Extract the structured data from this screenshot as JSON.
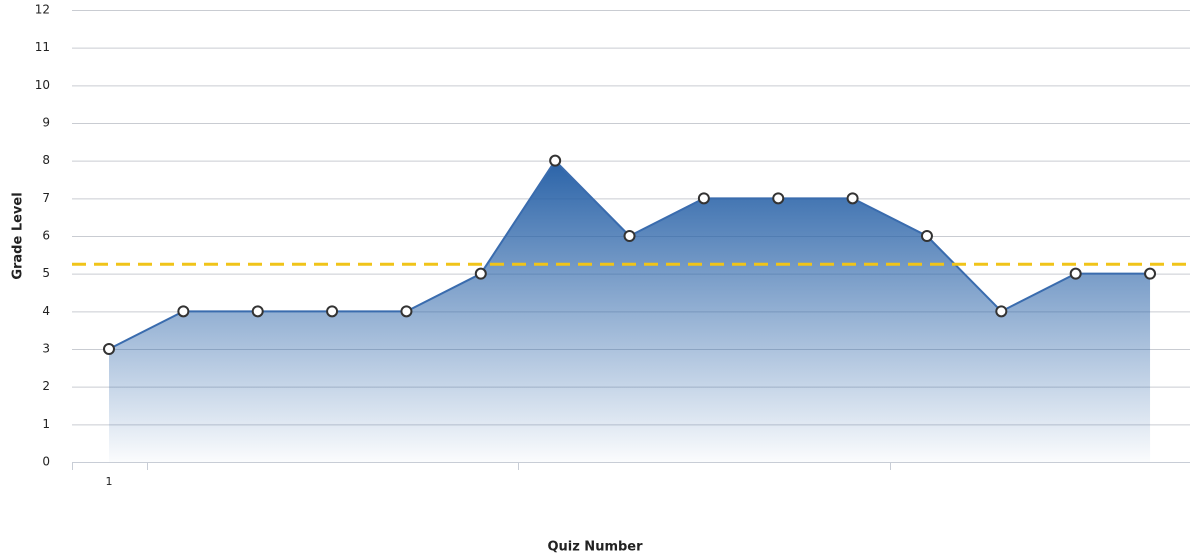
{
  "chart_data": {
    "type": "area",
    "x_label": "Quiz Number",
    "y_label": "Grade Level",
    "categories": [
      "1",
      null,
      null,
      null,
      null,
      null,
      null,
      null,
      null,
      null,
      null,
      null,
      null,
      null,
      null
    ],
    "series": [
      {
        "color": "#3a6cae",
        "values": [
          3,
          4,
          4,
          4,
          4,
          5,
          8,
          6,
          7,
          7,
          7,
          6,
          4,
          5,
          5
        ]
      }
    ],
    "reference_line": {
      "value": 5.25,
      "color": "#f0c419"
    },
    "ylim": [
      0,
      12
    ],
    "yticks": [
      0,
      1,
      2,
      3,
      4,
      5,
      6,
      7,
      8,
      9,
      10,
      11,
      12
    ],
    "grid": true
  }
}
